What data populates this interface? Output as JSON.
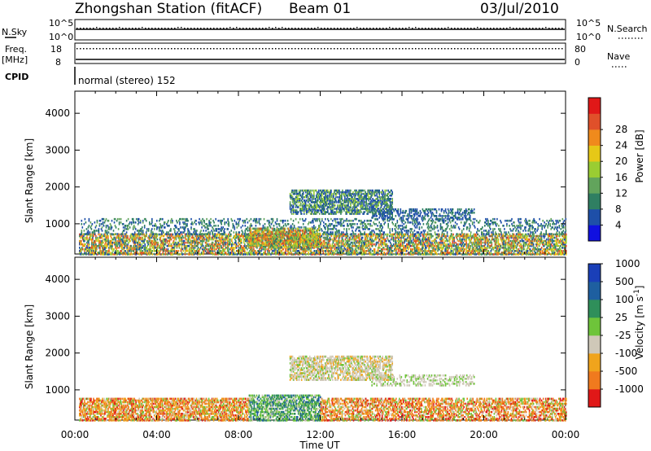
{
  "header": {
    "station": "Zhongshan Station (fitACF)",
    "beam": "Beam 01",
    "date": "03/Jul/2010"
  },
  "top_panels": {
    "nsky_label": "N.Sky",
    "nsky_ticks": [
      "10^5",
      "10^0"
    ],
    "nsearch_label": "N.Search",
    "nsearch_ticks": [
      "10^5",
      "10^0"
    ],
    "freq_label_1": "Freq.",
    "freq_label_2": "[MHz]",
    "freq_ticks": [
      "18",
      "8"
    ],
    "nave_label": "Nave",
    "nave_ticks": [
      "80",
      "0"
    ],
    "cpid_label": "CPID",
    "cpid_text": "normal (stereo) 152"
  },
  "chart_data": [
    {
      "type": "heatmap",
      "title": "",
      "xlabel": "Time UT",
      "ylabel": "Slant Range [km]",
      "x_ticks": [
        "00:00",
        "04:00",
        "08:00",
        "12:00",
        "16:00",
        "20:00",
        "00:00"
      ],
      "xlim_hours": [
        0,
        24
      ],
      "y_ticks": [
        "1000",
        "2000",
        "3000",
        "4000"
      ],
      "ylim_km": [
        180,
        4600
      ],
      "colorbar_label": "Power [dB]",
      "colorbar_ticks": [
        "4",
        "8",
        "12",
        "16",
        "20",
        "24",
        "28"
      ],
      "colorbar_colors": [
        "#1010e0",
        "#1e4fa8",
        "#2f7f62",
        "#62a45c",
        "#9acd32",
        "#e6c817",
        "#f08a1c",
        "#e0502a",
        "#e01818"
      ],
      "bands": [
        {
          "t0": 0.2,
          "t1": 24.0,
          "r0": 200,
          "r1": 750,
          "density": 0.55,
          "levels": [
            1,
            2,
            3,
            4,
            5,
            6,
            7
          ]
        },
        {
          "t0": 0.3,
          "t1": 24.0,
          "r0": 750,
          "r1": 1200,
          "density": 0.22,
          "levels": [
            1,
            1,
            2,
            2,
            3
          ]
        },
        {
          "t0": 10.5,
          "t1": 15.5,
          "r0": 1300,
          "r1": 1950,
          "density": 0.55,
          "levels": [
            1,
            1,
            2,
            3,
            4
          ]
        },
        {
          "t0": 14.5,
          "t1": 19.5,
          "r0": 1150,
          "r1": 1450,
          "density": 0.35,
          "levels": [
            1,
            1,
            2
          ]
        },
        {
          "t0": 8.5,
          "t1": 12.0,
          "r0": 400,
          "r1": 900,
          "density": 0.6,
          "levels": [
            2,
            3,
            4,
            5,
            6,
            7
          ]
        }
      ]
    },
    {
      "type": "heatmap",
      "title": "",
      "xlabel": "Time UT",
      "ylabel": "Slant Range [km]",
      "x_ticks": [
        "00:00",
        "04:00",
        "08:00",
        "12:00",
        "16:00",
        "20:00",
        "00:00"
      ],
      "xlim_hours": [
        0,
        24
      ],
      "y_ticks": [
        "1000",
        "2000",
        "3000",
        "4000"
      ],
      "ylim_km": [
        180,
        4600
      ],
      "colorbar_label": "Velocity",
      "colorbar_unit": "[m s",
      "colorbar_unit_exp": "-1",
      "colorbar_unit_end": "]",
      "colorbar_ticks": [
        "-1000",
        "-500",
        "-100",
        "-25",
        "25",
        "100",
        "500",
        "1000"
      ],
      "colorbar_colors": [
        "#e01818",
        "#f07a1e",
        "#f0a41c",
        "#cfc8b8",
        "#6ec43a",
        "#2f8f5a",
        "#1e5fa0",
        "#1a3fb8"
      ],
      "bands": [
        {
          "t0": 0.2,
          "t1": 8.5,
          "r0": 200,
          "r1": 800,
          "density": 0.6,
          "levels": [
            1,
            1,
            2,
            2,
            0,
            3,
            4
          ]
        },
        {
          "t0": 8.5,
          "t1": 12.0,
          "r0": 200,
          "r1": 900,
          "density": 0.55,
          "levels": [
            4,
            5,
            5,
            6,
            3,
            4
          ]
        },
        {
          "t0": 10.5,
          "t1": 15.5,
          "r0": 1300,
          "r1": 1950,
          "density": 0.55,
          "levels": [
            3,
            3,
            3,
            4,
            2
          ]
        },
        {
          "t0": 12.0,
          "t1": 24.0,
          "r0": 200,
          "r1": 800,
          "density": 0.5,
          "levels": [
            1,
            1,
            2,
            3,
            4,
            0
          ]
        },
        {
          "t0": 14.5,
          "t1": 19.5,
          "r0": 1150,
          "r1": 1450,
          "density": 0.3,
          "levels": [
            3,
            3,
            4
          ]
        }
      ]
    }
  ]
}
